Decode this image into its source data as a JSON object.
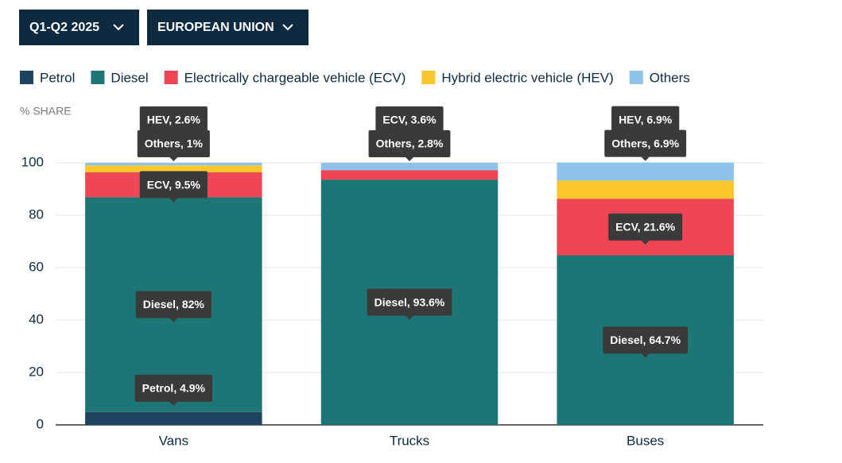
{
  "controls": [
    "Q1-Q2 2025",
    "EUROPEAN UNION"
  ],
  "chart_data": {
    "type": "stacked_bar",
    "y_label": "% SHARE",
    "categories": [
      "Vans",
      "Trucks",
      "Buses"
    ],
    "series": [
      {
        "name": "Petrol",
        "color": "#1d4461",
        "values": [
          4.9,
          0,
          0
        ],
        "value_labels": [
          "Petrol, 4.9%",
          null,
          null
        ]
      },
      {
        "name": "Diesel",
        "color": "#1e7575",
        "values": [
          82,
          93.6,
          64.7
        ],
        "value_labels": [
          "Diesel, 82%",
          "Diesel, 93.6%",
          "Diesel, 64.7%"
        ]
      },
      {
        "name": "Electrically chargeable vehicle (ECV)",
        "color": "#ef4655",
        "values": [
          9.5,
          3.6,
          21.6
        ],
        "value_labels": [
          "ECV, 9.5%",
          "ECV, 3.6%",
          "ECV, 21.6%"
        ]
      },
      {
        "name": "Hybrid electric vehicle (HEV)",
        "color": "#fcc72c",
        "values": [
          2.6,
          0,
          6.9
        ],
        "value_labels": [
          "HEV, 2.6%",
          null,
          "HEV, 6.9%"
        ]
      },
      {
        "name": "Others",
        "color": "#8dc3e8",
        "values": [
          1,
          2.8,
          6.9
        ],
        "value_labels": [
          "Others, 1%",
          "Others, 2.8%",
          "Others, 6.9%"
        ]
      }
    ],
    "ylim": [
      0,
      100
    ],
    "yticks": [
      0,
      20,
      40,
      60,
      80,
      100
    ],
    "grid": true
  }
}
